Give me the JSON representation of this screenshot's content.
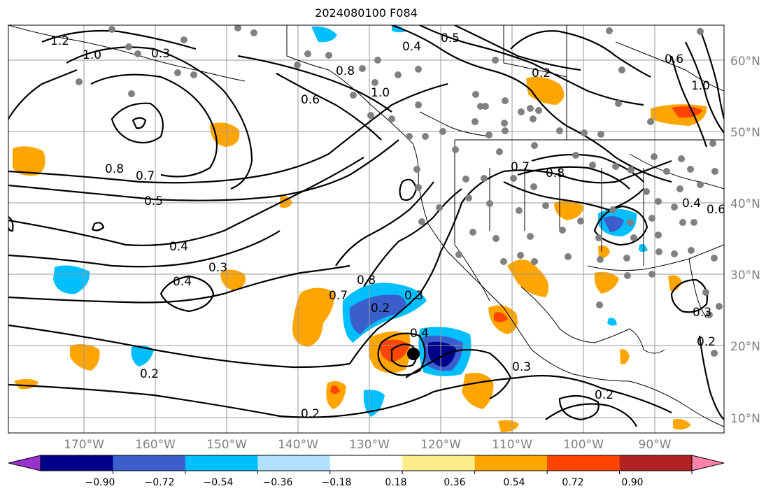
{
  "title": "2024080100 F084",
  "lon_labels": [
    "170°W",
    "160°W",
    "150°W",
    "140°W",
    "130°W",
    "120°W",
    "110°W",
    "100°W",
    "90°W"
  ],
  "lat_labels": [
    "60°N",
    "50°N",
    "40°N",
    "30°N",
    "20°N",
    "10°N"
  ],
  "contour_labels": [
    "1.2",
    "1.0",
    "0.3",
    "0.4",
    "0.5",
    "0.8",
    "0.2",
    "0.6",
    "1.0",
    "0.8",
    "0.7",
    "0.5",
    "0.4",
    "0.3",
    "0.4",
    "0.2",
    "0.7",
    "0.8",
    "0.2",
    "0.3",
    "0.4",
    "0.3",
    "0.2",
    "0.2",
    "0.7",
    "0.8",
    "0.4",
    "0.6",
    "0.3",
    "0.2",
    "1.0",
    "0.6"
  ],
  "colorbar": {
    "ticks": [
      "−0.90",
      "−0.72",
      "−0.54",
      "−0.36",
      "−0.18",
      "0.18",
      "0.36",
      "0.54",
      "0.72",
      "0.90"
    ],
    "colors": [
      "#9932cc",
      "#00008b",
      "#3a5fcd",
      "#00bfff",
      "#b0e2ff",
      "#ffffff",
      "#ffec8b",
      "#ffa500",
      "#ff4500",
      "#b22222",
      "#ff82ab"
    ]
  }
}
